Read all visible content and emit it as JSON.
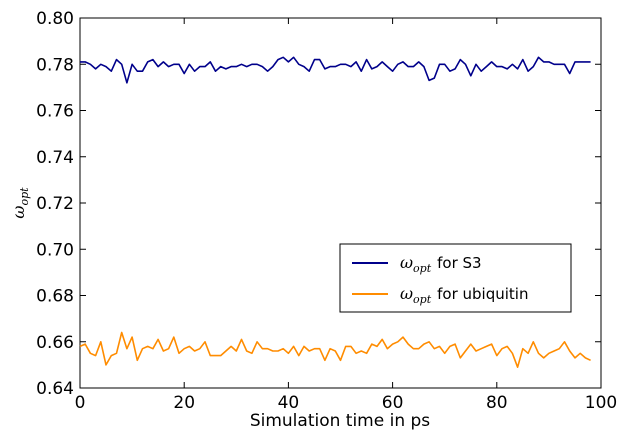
{
  "chart_data": {
    "type": "line",
    "xlabel": "Simulation time in ps",
    "ylabel": "ω",
    "ylabel_sub": "opt",
    "xlim": [
      0,
      100
    ],
    "ylim": [
      0.64,
      0.8
    ],
    "x_ticks": [
      "0",
      "20",
      "40",
      "60",
      "80",
      "100"
    ],
    "y_ticks": [
      "0.64",
      "0.66",
      "0.68",
      "0.70",
      "0.72",
      "0.74",
      "0.76",
      "0.78",
      "0.80"
    ],
    "grid": false,
    "legend_position": "center-right",
    "x": [
      0,
      1,
      2,
      3,
      4,
      5,
      6,
      7,
      8,
      9,
      10,
      11,
      12,
      13,
      14,
      15,
      16,
      17,
      18,
      19,
      20,
      21,
      22,
      23,
      24,
      25,
      26,
      27,
      28,
      29,
      30,
      31,
      32,
      33,
      34,
      35,
      36,
      37,
      38,
      39,
      40,
      41,
      42,
      43,
      44,
      45,
      46,
      47,
      48,
      49,
      50,
      51,
      52,
      53,
      54,
      55,
      56,
      57,
      58,
      59,
      60,
      61,
      62,
      63,
      64,
      65,
      66,
      67,
      68,
      69,
      70,
      71,
      72,
      73,
      74,
      75,
      76,
      77,
      78,
      79,
      80,
      81,
      82,
      83,
      84,
      85,
      86,
      87,
      88,
      89,
      90,
      91,
      92,
      93,
      94,
      95,
      96,
      97,
      98
    ],
    "series": [
      {
        "name": "for S3",
        "name_sym": "ω",
        "name_sub": "opt",
        "color": "#00008b",
        "values": [
          0.781,
          0.781,
          0.78,
          0.778,
          0.78,
          0.779,
          0.777,
          0.782,
          0.78,
          0.772,
          0.78,
          0.777,
          0.777,
          0.781,
          0.782,
          0.779,
          0.781,
          0.779,
          0.78,
          0.78,
          0.776,
          0.78,
          0.777,
          0.779,
          0.779,
          0.781,
          0.777,
          0.779,
          0.778,
          0.779,
          0.779,
          0.78,
          0.779,
          0.78,
          0.78,
          0.779,
          0.777,
          0.779,
          0.782,
          0.783,
          0.781,
          0.783,
          0.78,
          0.779,
          0.777,
          0.782,
          0.782,
          0.778,
          0.779,
          0.779,
          0.78,
          0.78,
          0.779,
          0.781,
          0.777,
          0.782,
          0.778,
          0.779,
          0.781,
          0.779,
          0.777,
          0.78,
          0.781,
          0.779,
          0.779,
          0.781,
          0.779,
          0.773,
          0.774,
          0.78,
          0.78,
          0.777,
          0.778,
          0.782,
          0.78,
          0.775,
          0.78,
          0.777,
          0.779,
          0.781,
          0.779,
          0.779,
          0.778,
          0.78,
          0.778,
          0.782,
          0.777,
          0.779,
          0.783,
          0.781,
          0.781,
          0.78,
          0.78,
          0.78,
          0.776,
          0.781,
          0.781,
          0.781,
          0.781
        ]
      },
      {
        "name": "for ubiquitin",
        "name_sym": "ω",
        "name_sub": "opt",
        "color": "#ff8c00",
        "values": [
          0.658,
          0.659,
          0.655,
          0.654,
          0.66,
          0.65,
          0.654,
          0.655,
          0.664,
          0.657,
          0.662,
          0.652,
          0.657,
          0.658,
          0.657,
          0.661,
          0.656,
          0.657,
          0.662,
          0.655,
          0.657,
          0.658,
          0.656,
          0.657,
          0.66,
          0.654,
          0.654,
          0.654,
          0.656,
          0.658,
          0.656,
          0.661,
          0.656,
          0.655,
          0.66,
          0.657,
          0.657,
          0.656,
          0.656,
          0.657,
          0.655,
          0.658,
          0.654,
          0.658,
          0.656,
          0.657,
          0.657,
          0.652,
          0.657,
          0.656,
          0.652,
          0.658,
          0.658,
          0.655,
          0.656,
          0.655,
          0.659,
          0.658,
          0.661,
          0.657,
          0.659,
          0.66,
          0.662,
          0.659,
          0.657,
          0.657,
          0.659,
          0.66,
          0.657,
          0.658,
          0.655,
          0.658,
          0.659,
          0.653,
          0.656,
          0.659,
          0.656,
          0.657,
          0.658,
          0.659,
          0.654,
          0.657,
          0.658,
          0.655,
          0.649,
          0.657,
          0.655,
          0.66,
          0.655,
          0.653,
          0.655,
          0.656,
          0.657,
          0.66,
          0.656,
          0.653,
          0.655,
          0.653,
          0.652
        ]
      }
    ]
  }
}
